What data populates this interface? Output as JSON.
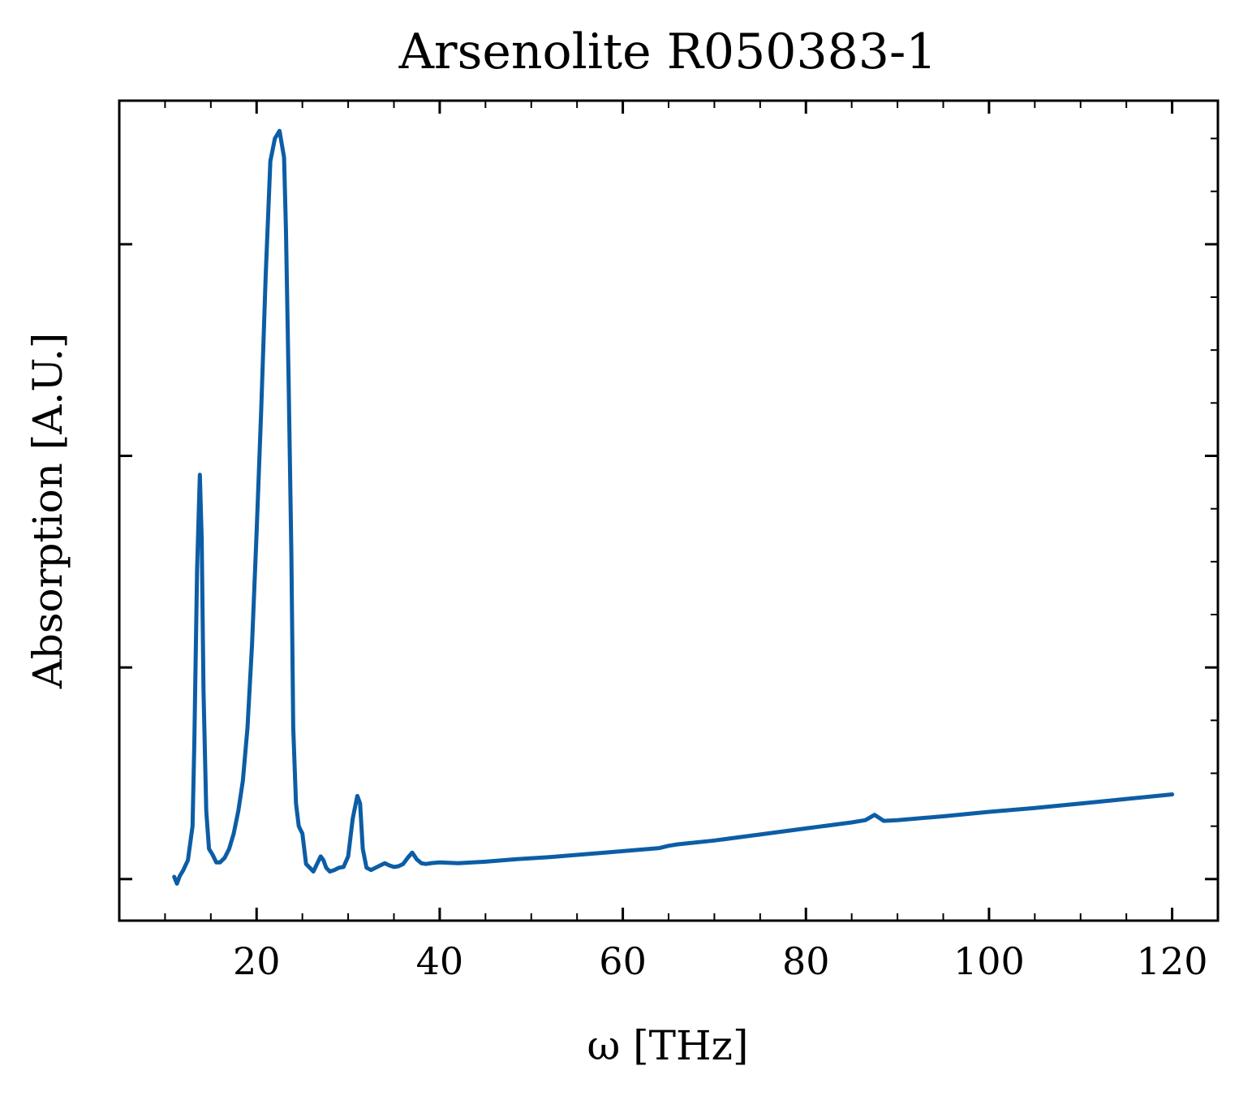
{
  "chart_data": {
    "type": "line",
    "title": "Arsenolite R050383-1",
    "xlabel": "ω [THz]",
    "ylabel": "Absorption [A.U.]",
    "xlim": [
      5,
      125
    ],
    "ylim": [
      -0.055,
      1.03
    ],
    "x_ticks": [
      20,
      40,
      60,
      80,
      100,
      120
    ],
    "x_tick_labels": [
      "20",
      "40",
      "60",
      "80",
      "100",
      "120"
    ],
    "y_ticks": [
      0.0,
      0.28,
      0.56,
      0.84
    ],
    "y_tick_labels": [
      "",
      "",
      "",
      ""
    ],
    "grid": false,
    "legend": "none",
    "line_color": "#0c5da5",
    "series": [
      {
        "x": [
          11.0,
          11.3,
          11.6,
          12.0,
          12.5,
          13.0,
          13.2,
          13.5,
          13.8,
          14.0,
          14.2,
          14.5,
          14.8,
          15.2,
          15.6,
          16.0,
          16.5,
          17.0,
          17.5,
          18.0,
          18.5,
          19.0,
          19.5,
          20.0,
          20.5,
          21.0,
          21.5,
          22.0,
          22.5,
          23.0,
          23.2,
          23.5,
          23.8,
          24.0,
          24.3,
          24.6,
          25.0,
          25.4,
          25.8,
          26.2,
          26.6,
          27.0,
          27.3,
          27.6,
          28.0,
          28.5,
          29.0,
          29.5,
          30.0,
          30.5,
          31.0,
          31.3,
          31.6,
          32.0,
          32.5,
          33.0,
          33.5,
          34.0,
          34.5,
          35.0,
          35.5,
          36.0,
          36.5,
          37.0,
          37.5,
          38.0,
          38.5,
          39.0,
          40.0,
          42.0,
          45.0,
          48.0,
          52.0,
          55.0,
          58.0,
          60.0,
          62.0,
          64.0,
          65.0,
          66.0,
          70.0,
          75.0,
          80.0,
          85.0,
          86.5,
          87.5,
          88.5,
          90.0,
          95.0,
          100.0,
          105.0,
          110.0,
          115.0,
          120.0
        ],
        "y": [
          0.003,
          -0.006,
          0.004,
          0.012,
          0.025,
          0.07,
          0.18,
          0.41,
          0.535,
          0.45,
          0.25,
          0.09,
          0.04,
          0.032,
          0.022,
          0.022,
          0.028,
          0.04,
          0.06,
          0.09,
          0.13,
          0.2,
          0.31,
          0.46,
          0.62,
          0.8,
          0.95,
          0.98,
          0.99,
          0.955,
          0.86,
          0.66,
          0.43,
          0.2,
          0.1,
          0.07,
          0.06,
          0.02,
          0.015,
          0.01,
          0.02,
          0.03,
          0.025,
          0.015,
          0.01,
          0.012,
          0.015,
          0.016,
          0.03,
          0.08,
          0.11,
          0.1,
          0.04,
          0.015,
          0.012,
          0.015,
          0.018,
          0.021,
          0.018,
          0.016,
          0.017,
          0.02,
          0.028,
          0.035,
          0.026,
          0.021,
          0.02,
          0.021,
          0.022,
          0.021,
          0.023,
          0.026,
          0.029,
          0.032,
          0.035,
          0.037,
          0.039,
          0.041,
          0.044,
          0.046,
          0.051,
          0.059,
          0.067,
          0.075,
          0.078,
          0.085,
          0.077,
          0.078,
          0.083,
          0.089,
          0.094,
          0.1,
          0.106,
          0.112
        ]
      }
    ]
  }
}
